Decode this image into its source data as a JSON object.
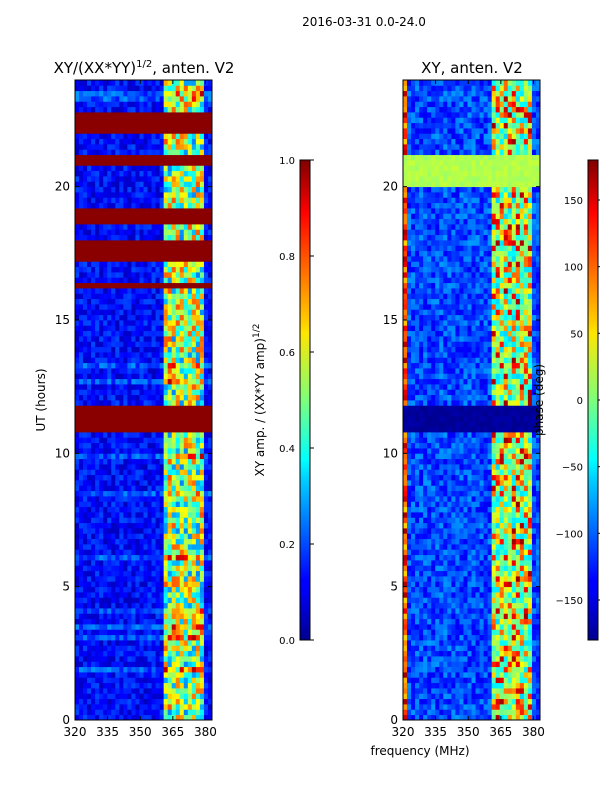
{
  "chart_data": {
    "suptitle": "2016-03-31 0.0-24.0",
    "xlabel": "frequency (MHz)",
    "panels": [
      {
        "id": "left",
        "type": "heatmap",
        "title_prefix": "XY/(XX*YY)",
        "title_exponent": "1/2",
        "title_suffix": ", anten. V2",
        "ylabel": "UT (hours)",
        "xlim": [
          320,
          383
        ],
        "ylim": [
          0,
          24
        ],
        "x_ticks": [
          320,
          335,
          350,
          365,
          380
        ],
        "y_ticks": [
          0,
          5,
          10,
          15,
          20
        ],
        "colorbar": {
          "label_prefix": "XY amp. / (XX*YY amp)",
          "label_exponent": "1/2",
          "range": [
            0.0,
            1.0
          ],
          "ticks": [
            "0.0",
            "0.2",
            "0.4",
            "0.6",
            "0.8",
            "1.0"
          ],
          "tick_values": [
            0.0,
            0.2,
            0.4,
            0.6,
            0.8,
            1.0
          ]
        },
        "saturated_bands_hours": [
          [
            10.8,
            11.8
          ],
          [
            17.3,
            17.9
          ],
          [
            18.7,
            19.1
          ],
          [
            20.8,
            21.1
          ],
          [
            22.0,
            22.7
          ],
          [
            16.1,
            16.4
          ]
        ],
        "bright_freq_range_mhz": [
          361,
          380
        ]
      },
      {
        "id": "right",
        "type": "heatmap",
        "title": "XY, anten. V2",
        "xlim": [
          320,
          383
        ],
        "ylim": [
          0,
          24
        ],
        "x_ticks": [
          320,
          335,
          350,
          365,
          380
        ],
        "y_ticks": [
          0,
          5,
          10,
          15,
          20
        ],
        "colorbar": {
          "label": "phase (deg)",
          "range": [
            -180,
            180
          ],
          "ticks": [
            "−150",
            "−100",
            "−50",
            "0",
            "50",
            "100",
            "150"
          ],
          "tick_values": [
            -150,
            -100,
            -50,
            0,
            50,
            100,
            150
          ]
        },
        "green_band_hours": [
          20.0,
          21.1
        ],
        "dark_band_hours": [
          10.9,
          11.8
        ],
        "bright_freq_range_mhz": [
          360,
          380
        ]
      }
    ]
  }
}
